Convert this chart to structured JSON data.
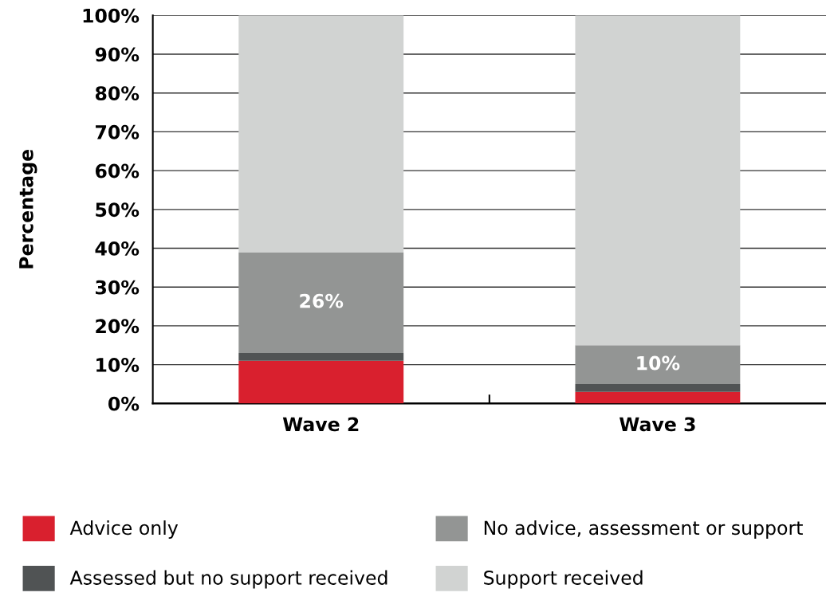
{
  "chart_data": {
    "type": "bar",
    "stacked": true,
    "ylabel": "Percentage",
    "categories": [
      "Wave 2",
      "Wave 3"
    ],
    "series": [
      {
        "name": "Advice only",
        "color": "#d9202e",
        "values": [
          11,
          3
        ]
      },
      {
        "name": "Assessed but no support received",
        "color": "#505354",
        "values": [
          2,
          2
        ]
      },
      {
        "name": "No advice, assessment or support",
        "color": "#939594",
        "values": [
          26,
          10
        ],
        "value_labels": [
          "26%",
          "10%"
        ]
      },
      {
        "name": "Support received",
        "color": "#d1d3d2",
        "values": [
          61,
          85
        ]
      }
    ],
    "ylim": [
      0,
      100
    ],
    "yticks": [
      {
        "value": 0,
        "label": "0%"
      },
      {
        "value": 10,
        "label": "10%"
      },
      {
        "value": 20,
        "label": "20%"
      },
      {
        "value": 30,
        "label": "30%"
      },
      {
        "value": 40,
        "label": "40%"
      },
      {
        "value": 50,
        "label": "50%"
      },
      {
        "value": 60,
        "label": "60%"
      },
      {
        "value": 70,
        "label": "70%"
      },
      {
        "value": 80,
        "label": "80%"
      },
      {
        "value": 90,
        "label": "90%"
      },
      {
        "value": 100,
        "label": "100%"
      }
    ],
    "grid": "y",
    "legend": "bottom"
  }
}
